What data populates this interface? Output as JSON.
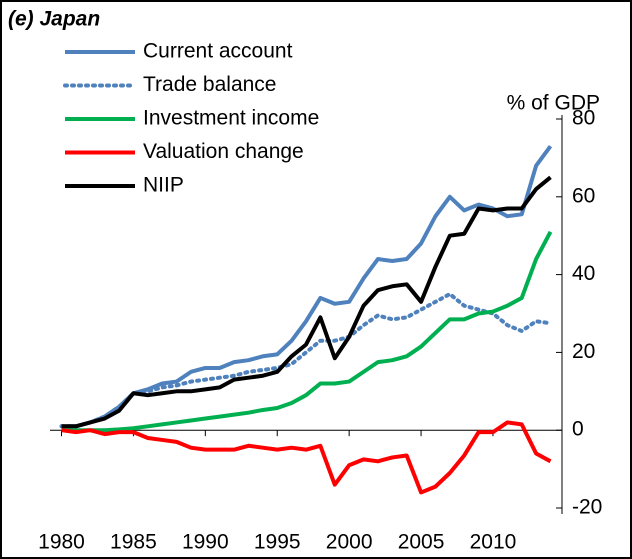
{
  "chart_data": {
    "type": "line",
    "title": "(e) Japan",
    "ylabel": "% of GDP",
    "x": [
      1980,
      1981,
      1982,
      1983,
      1984,
      1985,
      1986,
      1987,
      1988,
      1989,
      1990,
      1991,
      1992,
      1993,
      1994,
      1995,
      1996,
      1997,
      1998,
      1999,
      2000,
      2001,
      2002,
      2003,
      2004,
      2005,
      2006,
      2007,
      2008,
      2009,
      2010,
      2011,
      2012,
      2013,
      2014
    ],
    "xlim": [
      1979.2,
      2014.8
    ],
    "xticks": [
      1980,
      1985,
      1990,
      1995,
      2000,
      2005,
      2010
    ],
    "ylim": [
      -20,
      80
    ],
    "yticks": [
      -20,
      0,
      20,
      40,
      60,
      80
    ],
    "legend": "top-left",
    "grid": false,
    "series": [
      {
        "name": "Current account",
        "color": "#4f81bd",
        "style": "solid",
        "values": [
          1,
          1,
          2,
          3.5,
          6,
          9.5,
          10.5,
          12,
          12.5,
          15,
          16,
          16,
          17.5,
          18,
          19,
          19.5,
          23,
          28,
          34,
          32.5,
          33,
          39,
          44,
          43.5,
          44,
          48,
          55,
          60,
          56.5,
          58,
          57,
          55,
          55.5,
          68,
          73
        ]
      },
      {
        "name": "Trade balance",
        "color": "#4f81bd",
        "style": "dotted",
        "values": [
          1,
          1,
          2,
          3.5,
          6,
          9.5,
          10,
          11,
          11.5,
          12.5,
          13,
          13.5,
          14,
          15,
          15.5,
          16,
          17,
          20,
          23,
          23,
          24,
          27,
          29.5,
          28.5,
          29,
          31,
          33,
          35,
          32,
          31,
          30,
          27,
          25.5,
          28,
          27.5
        ]
      },
      {
        "name": "Investment income",
        "color": "#00b050",
        "style": "solid",
        "values": [
          0,
          0,
          0,
          0,
          0.2,
          0.5,
          1,
          1.5,
          2,
          2.5,
          3,
          3.5,
          4,
          4.5,
          5.2,
          5.7,
          7,
          9,
          12,
          12,
          12.5,
          15,
          17.5,
          18,
          19,
          21.5,
          25,
          28.5,
          28.5,
          30,
          30.5,
          32,
          34,
          44,
          51
        ]
      },
      {
        "name": "Valuation change",
        "color": "#ff0000",
        "style": "solid",
        "values": [
          0,
          -0.5,
          0,
          -1,
          -0.5,
          -0.5,
          -2,
          -2.5,
          -3,
          -4.5,
          -5,
          -5,
          -5,
          -4,
          -4.5,
          -5,
          -4.5,
          -5,
          -4,
          -14,
          -9,
          -7.5,
          -8,
          -7,
          -6.5,
          -16,
          -14.5,
          -11,
          -6.5,
          -0.5,
          -0.5,
          2,
          1.5,
          -6,
          -8
        ]
      },
      {
        "name": "NIIP",
        "color": "#000000",
        "style": "solid",
        "values": [
          1,
          1,
          2,
          3,
          5,
          9.5,
          9,
          9.5,
          10,
          10,
          10.5,
          11,
          13,
          13.5,
          14,
          15,
          19,
          22,
          29,
          18.5,
          24,
          32,
          36,
          37,
          37.5,
          33,
          42,
          50,
          50.5,
          57,
          56.5,
          57,
          57,
          62,
          65
        ]
      }
    ]
  }
}
